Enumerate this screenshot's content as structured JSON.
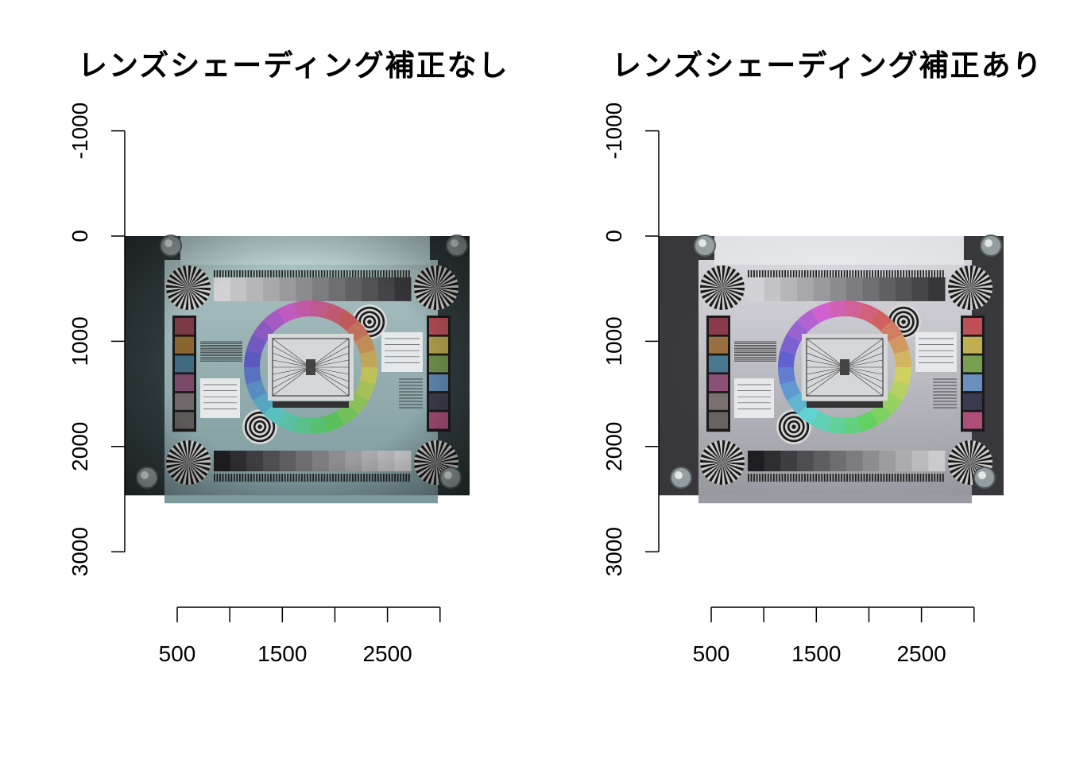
{
  "chart_data": [
    {
      "type": "image",
      "title": "レンズシェーディング補正なし",
      "xlabel": "",
      "ylabel": "",
      "x_ticks": [
        500,
        1000,
        1500,
        2000,
        2500,
        3000
      ],
      "x_tick_labels": [
        "500",
        "",
        "1500",
        "",
        "2500",
        ""
      ],
      "y_ticks": [
        -1000,
        0,
        1000,
        2000,
        3000
      ],
      "y_tick_labels": [
        "-1000",
        "0",
        "1000",
        "2000",
        "3000"
      ],
      "ylim": [
        -1000,
        3000
      ],
      "y_reversed": true,
      "image_extent": {
        "x": [
          0,
          3280
        ],
        "y": [
          0,
          2464
        ]
      },
      "shading_corrected": false,
      "swatches_left": [
        "#7a3a46",
        "#8a6530",
        "#3f6a80",
        "#7a4a6a",
        "#70686a",
        "#5f5a5a"
      ],
      "swatches_right": [
        "#b04a52",
        "#a89a48",
        "#6a8a48",
        "#5a80a8",
        "#3a3a48",
        "#a04a70"
      ]
    },
    {
      "type": "image",
      "title": "レンズシェーディング補正あり",
      "xlabel": "",
      "ylabel": "",
      "x_ticks": [
        500,
        1000,
        1500,
        2000,
        2500,
        3000
      ],
      "x_tick_labels": [
        "500",
        "",
        "1500",
        "",
        "2500",
        ""
      ],
      "y_ticks": [
        -1000,
        0,
        1000,
        2000,
        3000
      ],
      "y_tick_labels": [
        "-1000",
        "0",
        "1000",
        "2000",
        "3000"
      ],
      "ylim": [
        -1000,
        3000
      ],
      "y_reversed": true,
      "image_extent": {
        "x": [
          0,
          3280
        ],
        "y": [
          0,
          2464
        ]
      },
      "shading_corrected": true,
      "swatches_left": [
        "#8a3a4a",
        "#9a7040",
        "#4a7890",
        "#8a5078",
        "#7a7070",
        "#6a6262"
      ],
      "swatches_right": [
        "#c05058",
        "#c0b050",
        "#78a050",
        "#6a90c0",
        "#3a3a50",
        "#b0507a"
      ]
    }
  ]
}
